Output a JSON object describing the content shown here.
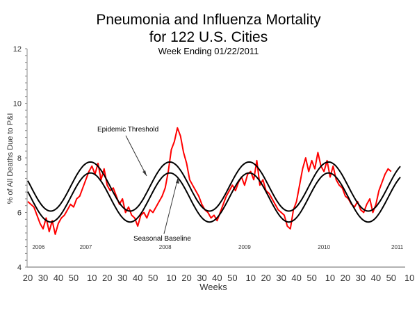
{
  "chart_data": {
    "type": "line",
    "title": "Pneumonia and Influenza Mortality",
    "subtitle": "for 122 U.S. Cities",
    "subtitle2": "Week Ending   01/22/2011",
    "xlabel": "Weeks",
    "ylabel": "% of All Deaths Due to P&I",
    "ylim": [
      4,
      12
    ],
    "yticks": [
      "4",
      "6",
      "8",
      "10",
      "12"
    ],
    "xtick_labels": [
      "20",
      "30",
      "40",
      "50",
      "10",
      "20",
      "30",
      "40",
      "50",
      "10",
      "20",
      "30",
      "40",
      "50",
      "10",
      "20",
      "30",
      "40",
      "50",
      "10",
      "20",
      "30",
      "40",
      "50",
      "10",
      "20",
      "30",
      "40",
      "50"
    ],
    "year_labels": [
      "2006",
      "2007",
      "2008",
      "2009",
      "2010",
      "2011"
    ],
    "annotations": [
      "Epidemic Threshold",
      "Seasonal Baseline"
    ],
    "x_start": {
      "year": 2006,
      "week": 20
    },
    "x_step_weeks": 2,
    "series": [
      {
        "name": "Observed",
        "color": "#ff0000",
        "values": [
          6.4,
          6.3,
          6.2,
          5.9,
          5.6,
          5.4,
          5.8,
          5.3,
          5.7,
          5.2,
          5.6,
          5.8,
          5.9,
          6.1,
          6.3,
          6.2,
          6.5,
          6.6,
          6.9,
          7.2,
          7.5,
          7.7,
          7.4,
          7.8,
          7.2,
          7.6,
          7.0,
          6.8,
          6.9,
          6.6,
          6.3,
          6.5,
          6.0,
          6.2,
          5.9,
          5.8,
          5.5,
          5.9,
          6.0,
          5.8,
          6.1,
          6.0,
          6.2,
          6.4,
          6.6,
          6.9,
          7.5,
          8.3,
          8.6,
          9.1,
          8.8,
          8.2,
          7.8,
          7.2,
          7.0,
          6.8,
          6.6,
          6.3,
          6.1,
          6.0,
          5.8,
          5.9,
          5.7,
          6.0,
          6.3,
          6.6,
          6.8,
          7.0,
          6.8,
          7.1,
          7.3,
          7.0,
          7.4,
          7.5,
          7.2,
          7.9,
          7.0,
          7.2,
          6.8,
          6.7,
          6.5,
          6.3,
          6.1,
          6.0,
          5.9,
          5.5,
          5.4,
          6.1,
          6.4,
          7.0,
          7.6,
          8.0,
          7.5,
          7.9,
          7.6,
          8.2,
          7.7,
          7.5,
          7.9,
          7.3,
          7.7,
          7.2,
          7.0,
          6.9,
          6.6,
          6.5,
          6.3,
          6.2,
          6.4,
          6.1,
          6.0,
          6.3,
          6.5,
          6.0,
          6.3,
          6.8,
          7.1,
          7.4,
          7.6,
          7.5
        ]
      },
      {
        "name": "Epidemic Threshold",
        "color": "#000000",
        "mean": 6.95,
        "amplitude": 0.9,
        "peak_week": 9
      },
      {
        "name": "Seasonal Baseline",
        "color": "#000000",
        "mean": 6.55,
        "amplitude": 0.9,
        "peak_week": 9
      }
    ]
  }
}
